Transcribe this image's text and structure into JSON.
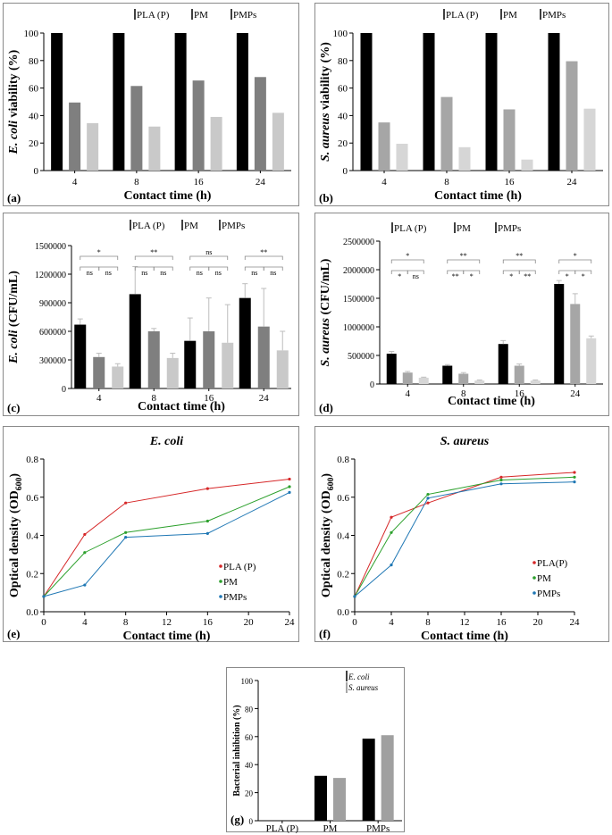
{
  "colors": {
    "pla": "#000000",
    "pm": "#7f7f7f",
    "pmps": "#c9c9c9",
    "pm_b": "#a6a6a6",
    "pmps_b": "#d6d6d6",
    "line_pla": "#d62728",
    "line_pm": "#2ca02c",
    "line_pmps": "#1f77b4",
    "gi_ecoli": "#000000",
    "gi_saureus": "#a0a0a0"
  },
  "chart_data": [
    {
      "id": "a",
      "type": "bar",
      "panel_label": "(a)",
      "title": "",
      "xlabel": "Contact time (h)",
      "ylabel_italic": "E. coli",
      "ylabel_rest": " viability (%)",
      "categories": [
        "4",
        "8",
        "16",
        "24"
      ],
      "series": [
        {
          "name": "PLA (P)",
          "values": [
            100,
            100,
            100,
            100
          ]
        },
        {
          "name": "PM",
          "values": [
            49.5,
            61.5,
            65.5,
            68
          ]
        },
        {
          "name": "PMPs",
          "values": [
            34.5,
            32,
            39,
            42
          ]
        }
      ],
      "ylim": [
        0,
        100
      ],
      "yticks": [
        "0",
        "20",
        "40",
        "60",
        "80",
        "100"
      ]
    },
    {
      "id": "b",
      "type": "bar",
      "panel_label": "(b)",
      "title": "",
      "xlabel": "Contact time (h)",
      "ylabel_italic": "S. aureus",
      "ylabel_rest": " viability (%)",
      "categories": [
        "4",
        "8",
        "16",
        "24"
      ],
      "series": [
        {
          "name": "PLA (P)",
          "values": [
            100,
            100,
            100,
            100
          ]
        },
        {
          "name": "PM",
          "values": [
            35,
            53.5,
            44.5,
            79.5
          ]
        },
        {
          "name": "PMPs",
          "values": [
            19.5,
            17,
            8,
            45
          ]
        }
      ],
      "ylim": [
        0,
        100
      ],
      "yticks": [
        "0",
        "20",
        "40",
        "60",
        "80",
        "100"
      ]
    },
    {
      "id": "c",
      "type": "bar",
      "panel_label": "(c)",
      "title": "",
      "xlabel": "Contact time (h)",
      "ylabel_italic": "E. coli",
      "ylabel_rest": " (CFU/mL)",
      "categories": [
        "4",
        "8",
        "16",
        "24"
      ],
      "series": [
        {
          "name": "PLA (P)",
          "values": [
            670000,
            990000,
            500000,
            950000
          ],
          "errors": [
            60000,
            290000,
            240000,
            150000
          ]
        },
        {
          "name": "PM",
          "values": [
            330000,
            600000,
            600000,
            650000
          ],
          "errors": [
            40000,
            30000,
            350000,
            400000
          ]
        },
        {
          "name": "PMPs",
          "values": [
            230000,
            320000,
            480000,
            400000
          ],
          "errors": [
            30000,
            50000,
            400000,
            200000
          ]
        }
      ],
      "ylim": [
        0,
        1500000
      ],
      "yticks": [
        "0",
        "300000",
        "600000",
        "900000",
        "1200000",
        "1500000"
      ],
      "significance": [
        {
          "top": "*",
          "pairs": [
            "ns",
            "ns"
          ]
        },
        {
          "top": "**",
          "pairs": [
            "ns",
            "ns"
          ]
        },
        {
          "top": "ns",
          "pairs": [
            "ns",
            "ns"
          ]
        },
        {
          "top": "**",
          "pairs": [
            "ns",
            "ns"
          ]
        }
      ]
    },
    {
      "id": "d",
      "type": "bar",
      "panel_label": "(d)",
      "title": "",
      "xlabel": "Contact time (h)",
      "ylabel_italic": "S. aureus",
      "ylabel_rest": " (CFU/mL)",
      "categories": [
        "4",
        "8",
        "16",
        "24"
      ],
      "series": [
        {
          "name": "PLA (P)",
          "values": [
            530000,
            320000,
            700000,
            1750000
          ],
          "errors": [
            40000,
            20000,
            60000,
            60000
          ]
        },
        {
          "name": "PM",
          "values": [
            200000,
            180000,
            320000,
            1400000
          ],
          "errors": [
            20000,
            20000,
            30000,
            180000
          ]
        },
        {
          "name": "PMPs",
          "values": [
            110000,
            60000,
            60000,
            800000
          ],
          "errors": [
            10000,
            10000,
            10000,
            40000
          ]
        }
      ],
      "ylim": [
        0,
        2500000
      ],
      "yticks": [
        "0",
        "500000",
        "1000000",
        "1500000",
        "2000000",
        "2500000"
      ],
      "significance": [
        {
          "top": "*",
          "pairs": [
            "*",
            "ns"
          ]
        },
        {
          "top": "**",
          "pairs": [
            "**",
            "*"
          ]
        },
        {
          "top": "**",
          "pairs": [
            "*",
            "**"
          ]
        },
        {
          "top": "*",
          "pairs": [
            "*",
            "*"
          ]
        }
      ]
    },
    {
      "id": "e",
      "type": "line",
      "panel_label": "(e)",
      "title": "E. coli",
      "xlabel": "Contact time (h)",
      "ylabel": "Optical density (OD",
      "ylabel_sub": "600",
      "ylabel_end": ")",
      "x": [
        0,
        4,
        8,
        16,
        24
      ],
      "series": [
        {
          "name": "PLA (P)",
          "values": [
            0.08,
            0.405,
            0.57,
            0.645,
            0.695
          ]
        },
        {
          "name": "PM",
          "values": [
            0.08,
            0.31,
            0.415,
            0.475,
            0.655
          ]
        },
        {
          "name": "PMPs",
          "values": [
            0.08,
            0.14,
            0.39,
            0.41,
            0.625
          ]
        }
      ],
      "xlim": [
        0,
        24
      ],
      "ylim": [
        0,
        0.8
      ],
      "xticks": [
        "0",
        "4",
        "8",
        "12",
        "16",
        "20",
        "24"
      ],
      "yticks": [
        "0.0",
        "0.2",
        "0.4",
        "0.6",
        "0.8"
      ],
      "legend_position": "right"
    },
    {
      "id": "f",
      "type": "line",
      "panel_label": "(f)",
      "title": "S. aureus",
      "xlabel": "Contact time (h)",
      "ylabel": "Optical density (OD",
      "ylabel_sub": "600",
      "ylabel_end": ")",
      "x": [
        0,
        4,
        8,
        16,
        24
      ],
      "series": [
        {
          "name": "PLA(P)",
          "values": [
            0.08,
            0.495,
            0.57,
            0.705,
            0.73
          ]
        },
        {
          "name": "PM",
          "values": [
            0.08,
            0.415,
            0.615,
            0.69,
            0.705
          ]
        },
        {
          "name": "PMPs",
          "values": [
            0.08,
            0.245,
            0.595,
            0.67,
            0.68
          ]
        }
      ],
      "xlim": [
        0,
        24
      ],
      "ylim": [
        0,
        0.8
      ],
      "xticks": [
        "0",
        "4",
        "8",
        "12",
        "16",
        "20",
        "24"
      ],
      "yticks": [
        "0.0",
        "0.2",
        "0.4",
        "0.6",
        "0.8"
      ],
      "legend_position": "right"
    },
    {
      "id": "g",
      "type": "bar",
      "panel_label": "(g)",
      "title": "",
      "xlabel": "",
      "ylabel": "Bacterial inhibition (%)",
      "categories": [
        "PLA (P)",
        "PM",
        "PMPs"
      ],
      "series": [
        {
          "name": "E. coli",
          "values": [
            0,
            32,
            58.5
          ]
        },
        {
          "name": "S. aureus",
          "values": [
            0,
            30.5,
            61
          ]
        }
      ],
      "ylim": [
        0,
        100
      ],
      "yticks": [
        "0",
        "20",
        "40",
        "60",
        "80",
        "100"
      ],
      "legend_position": "top-right"
    }
  ]
}
